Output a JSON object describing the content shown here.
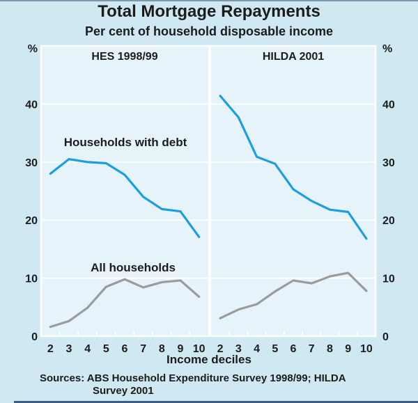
{
  "title": "Total Mortgage Repayments",
  "subtitle": "Per cent of household disposable income",
  "footer": {
    "line1": "Sources: ABS Household Expenditure Survey 1998/99; HILDA",
    "line2": "Survey 2001"
  },
  "colors": {
    "background": "#cfe8f2",
    "plot_background": "#e6f3fa",
    "grid": "#ffffff",
    "debt_line": "#1b9fe0",
    "all_line": "#9b9b9b",
    "text": "#1c1c1c"
  },
  "chart_data": {
    "type": "line",
    "title": "Total Mortgage Repayments",
    "subtitle": "Per cent of household disposable income",
    "xlabel": "Income deciles",
    "unit_label": "%",
    "ylim": [
      0,
      50
    ],
    "yticks": [
      0,
      10,
      20,
      30,
      40
    ],
    "grid": true,
    "categories": [
      "2",
      "3",
      "4",
      "5",
      "6",
      "7",
      "8",
      "9",
      "10"
    ],
    "panels": [
      {
        "label": "HES 1998/99",
        "series": [
          {
            "name": "Households with debt",
            "color_key": "debt_line",
            "values": [
              28.0,
              30.5,
              30.0,
              29.8,
              27.8,
              24.0,
              21.9,
              21.5,
              17.1
            ]
          },
          {
            "name": "All households",
            "color_key": "all_line",
            "values": [
              1.6,
              2.6,
              4.9,
              8.5,
              9.8,
              8.4,
              9.3,
              9.6,
              6.8
            ]
          }
        ],
        "annotations": [
          {
            "text": "Households with debt"
          },
          {
            "text": "All households"
          }
        ]
      },
      {
        "label": "HILDA 2001",
        "series": [
          {
            "name": "Households with debt",
            "color_key": "debt_line",
            "values": [
              41.4,
              37.7,
              30.9,
              29.7,
              25.3,
              23.3,
              21.8,
              21.4,
              16.8
            ]
          },
          {
            "name": "All households",
            "color_key": "all_line",
            "values": [
              3.1,
              4.6,
              5.5,
              7.7,
              9.6,
              9.1,
              10.3,
              10.9,
              7.8
            ]
          }
        ],
        "annotations": []
      }
    ]
  }
}
